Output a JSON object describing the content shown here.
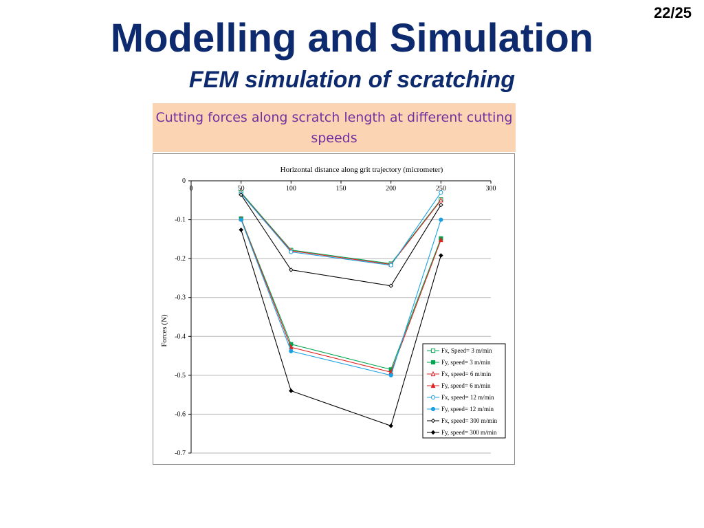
{
  "slide": {
    "number": "22/25",
    "title": "Modelling and Simulation",
    "subtitle": "FEM simulation of scratching",
    "caption": "Cutting forces along scratch length at different cutting speeds"
  },
  "chart_data": {
    "type": "line",
    "title": "",
    "xlabel": "Horizontal distance along grit trajectory (micrometer)",
    "ylabel": "Forces (N)",
    "xlim": [
      0,
      300
    ],
    "ylim": [
      -0.7,
      0
    ],
    "x_ticks": [
      0,
      50,
      100,
      150,
      200,
      250,
      300
    ],
    "y_ticks": [
      0,
      -0.1,
      -0.2,
      -0.3,
      -0.4,
      -0.5,
      -0.6,
      -0.7
    ],
    "x_axis_position": "top",
    "grid": "horizontal",
    "legend_position": "bottom-right",
    "x": [
      50,
      100,
      200,
      250
    ],
    "series": [
      {
        "name": "Fx, Speed= 3 m/min",
        "values": [
          -0.03,
          -0.178,
          -0.213,
          -0.048
        ],
        "color": "#00a651",
        "marker": "square-open"
      },
      {
        "name": "Fy, speed= 3 m/min",
        "values": [
          -0.097,
          -0.42,
          -0.485,
          -0.148
        ],
        "color": "#00a651",
        "marker": "square"
      },
      {
        "name": "Fx, speed= 6 m/min",
        "values": [
          -0.032,
          -0.18,
          -0.215,
          -0.05
        ],
        "color": "#e02020",
        "marker": "triangle-open"
      },
      {
        "name": "Fy, speed= 6 m/min",
        "values": [
          -0.098,
          -0.428,
          -0.492,
          -0.152
        ],
        "color": "#e02020",
        "marker": "triangle"
      },
      {
        "name": "Fx, speed= 12 m/min",
        "values": [
          -0.033,
          -0.183,
          -0.217,
          -0.03
        ],
        "color": "#1ba1e2",
        "marker": "circle-open"
      },
      {
        "name": "Fy, speed= 12 m/min",
        "values": [
          -0.1,
          -0.438,
          -0.5,
          -0.1
        ],
        "color": "#1ba1e2",
        "marker": "circle"
      },
      {
        "name": "Fx, speed= 300 m/min",
        "values": [
          -0.036,
          -0.229,
          -0.27,
          -0.062
        ],
        "color": "#000000",
        "marker": "diamond-open"
      },
      {
        "name": "Fy, speed= 300 m/min",
        "values": [
          -0.126,
          -0.54,
          -0.63,
          -0.192
        ],
        "color": "#000000",
        "marker": "diamond"
      }
    ]
  }
}
